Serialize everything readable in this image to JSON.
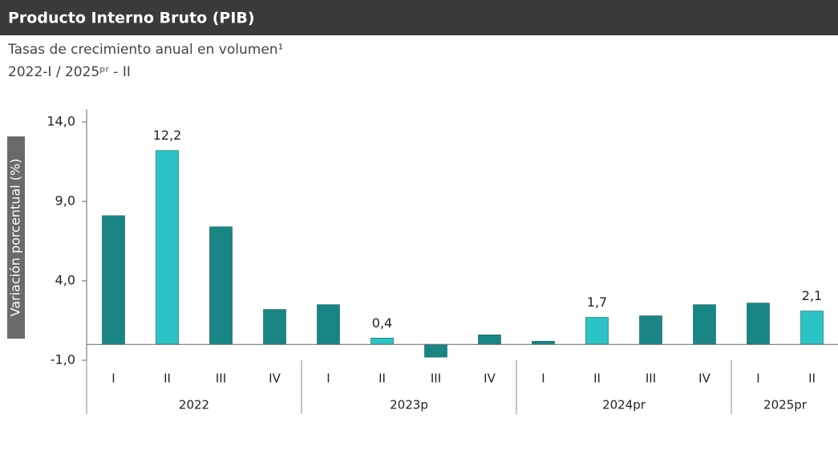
{
  "chart_data": {
    "type": "bar",
    "title": "Producto Interno Bruto (PIB)",
    "subtitle": [
      "Tasas de crecimiento anual en volumen¹",
      "2022-I / 2025ᵖʳ - II"
    ],
    "y_label": "Variación porcentual (%)",
    "categories": [
      "I",
      "II",
      "III",
      "IV",
      "I",
      "II",
      "III",
      "IV",
      "I",
      "II",
      "III",
      "IV",
      "I",
      "II"
    ],
    "groups": [
      {
        "name": "2022",
        "count": 4
      },
      {
        "name": "2023p",
        "count": 4
      },
      {
        "name": "2024pr",
        "count": 4
      },
      {
        "name": "2025pr",
        "count": 2
      }
    ],
    "values": [
      8.1,
      12.2,
      7.4,
      2.2,
      2.5,
      0.4,
      -0.8,
      0.6,
      0.2,
      1.7,
      1.8,
      2.5,
      2.6,
      2.1
    ],
    "value_labels": [
      null,
      "12,2",
      null,
      null,
      null,
      "0,4",
      null,
      null,
      null,
      "1,7",
      null,
      null,
      null,
      "2,1"
    ],
    "colors": [
      "#1a8585",
      "#2cc3c6",
      "#1a8585",
      "#1a8585",
      "#1a8585",
      "#2cc3c6",
      "#1a8585",
      "#1a8585",
      "#1a8585",
      "#2cc3c6",
      "#1a8585",
      "#1a8585",
      "#1a8585",
      "#2cc3c6"
    ],
    "ylim": [
      -1,
      14
    ],
    "yticks": [
      {
        "value": -1,
        "label": "-1,0"
      },
      {
        "value": 4,
        "label": "4,0"
      },
      {
        "value": 9,
        "label": "9,0"
      },
      {
        "value": 14,
        "label": "14,0"
      }
    ],
    "grid": false
  }
}
